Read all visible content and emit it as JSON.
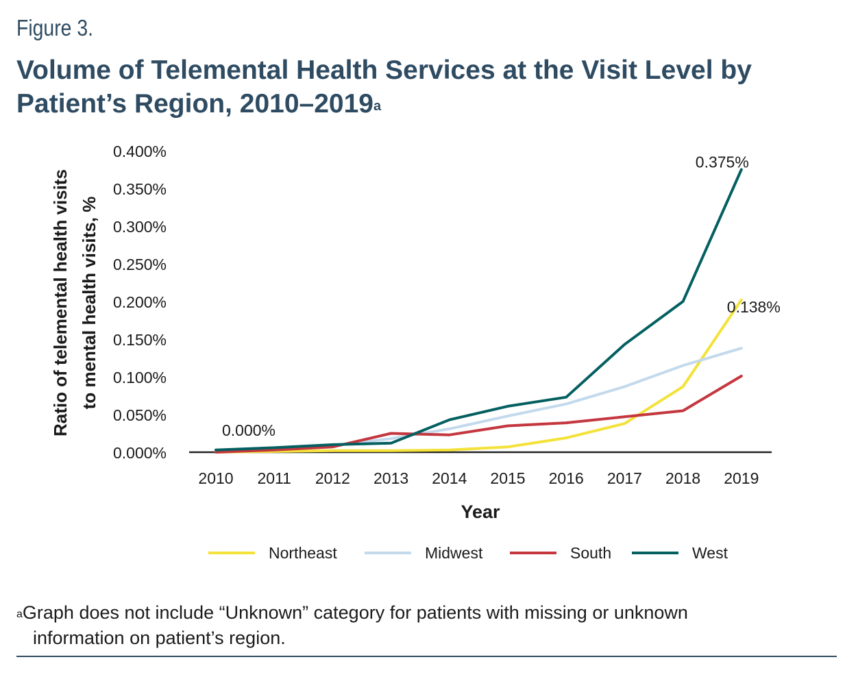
{
  "figure_label": "Figure 3.",
  "title": "Volume of Telemental Health Services at the Visit Level by Patient’s Region, 2010–2019",
  "title_superscript": "a",
  "footnote": {
    "marker": "a",
    "line1": "Graph does not include “Unknown” category for patients with missing or unknown",
    "line2": "information on patient’s region."
  },
  "colors": {
    "heading": "#2e4b62",
    "Northeast": "#f4e23a",
    "Midwest": "#c3d9ec",
    "South": "#c4373f",
    "West": "#045f61"
  },
  "chart_data": {
    "type": "line",
    "xlabel": "Year",
    "ylabel": [
      "Ratio of telemental health visits",
      "to mental health visits, %"
    ],
    "x": [
      "2010",
      "2011",
      "2012",
      "2013",
      "2014",
      "2015",
      "2016",
      "2017",
      "2018",
      "2019"
    ],
    "ylim": [
      0,
      0.4
    ],
    "yticks": [
      "0.000%",
      "0.050%",
      "0.100%",
      "0.150%",
      "0.200%",
      "0.250%",
      "0.300%",
      "0.350%",
      "0.400%"
    ],
    "grid": false,
    "legend_position": "bottom",
    "series": [
      {
        "name": "Northeast",
        "values": [
          0.0,
          0.001,
          0.002,
          0.002,
          0.003,
          0.007,
          0.019,
          0.038,
          0.087,
          0.202
        ]
      },
      {
        "name": "Midwest",
        "values": [
          0.0,
          0.004,
          0.009,
          0.018,
          0.031,
          0.048,
          0.064,
          0.087,
          0.115,
          0.138
        ]
      },
      {
        "name": "South",
        "values": [
          0.0,
          0.003,
          0.007,
          0.025,
          0.023,
          0.035,
          0.039,
          0.047,
          0.055,
          0.101
        ]
      },
      {
        "name": "West",
        "values": [
          0.003,
          0.006,
          0.01,
          0.012,
          0.043,
          0.061,
          0.073,
          0.143,
          0.2,
          0.375
        ]
      }
    ],
    "annotations": [
      {
        "text": "0.000%",
        "x": "2010",
        "y": 0.0
      },
      {
        "text": "0.375%",
        "x": "2019",
        "y": 0.375
      },
      {
        "text": "0.138%",
        "x": "2019",
        "y": 0.138
      }
    ]
  }
}
